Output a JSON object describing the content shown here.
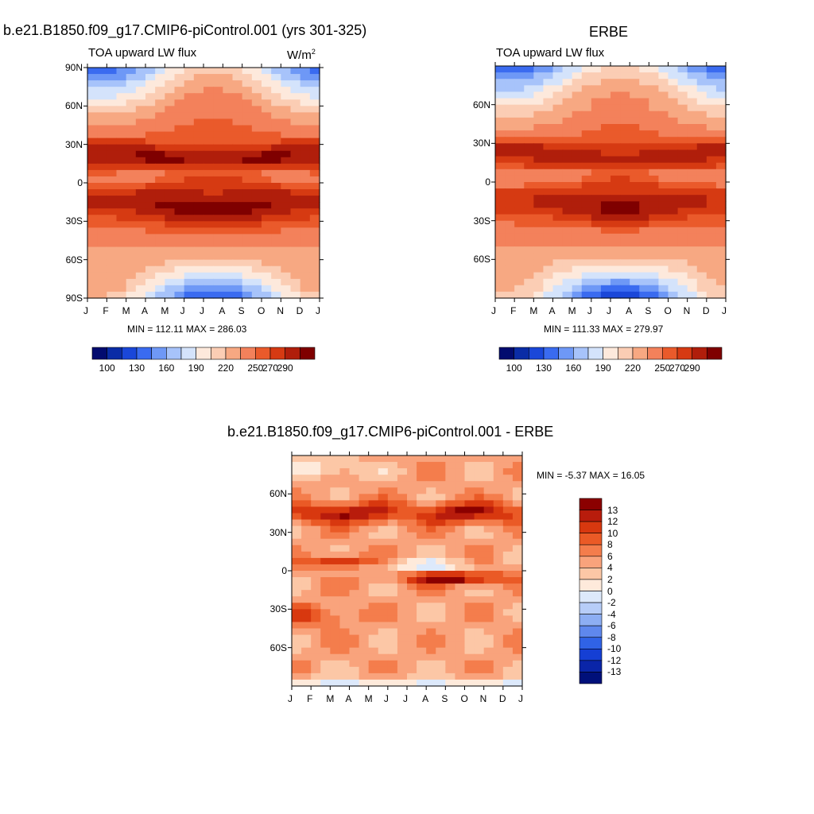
{
  "chart_data": [
    {
      "type": "heatmap",
      "title": "b.e21.B1850.f09_g17.CMIP6-piControl.001 (yrs 301-325)",
      "subtitle": "TOA upward LW flux",
      "units_base": "W/m",
      "units_exp": "2",
      "x_ticks": [
        "J",
        "F",
        "M",
        "A",
        "M",
        "J",
        "J",
        "A",
        "S",
        "O",
        "N",
        "D",
        "J"
      ],
      "y_ticks": [
        "90N",
        "60N",
        "30N",
        "0",
        "30S",
        "60S",
        "90S"
      ],
      "y_values": [
        90,
        60,
        30,
        0,
        -30,
        -60,
        -90
      ],
      "stats": "MIN = 112.11 MAX = 286.03",
      "min": 112.11,
      "max": 286.03,
      "colorbar_labels": [
        "100",
        "130",
        "160",
        "190",
        "220",
        "250",
        "270",
        "290"
      ],
      "colorbar_colors": [
        "#020b6f",
        "#0a2ca6",
        "#1a47d9",
        "#3a6bf0",
        "#6e98f6",
        "#a7c3fa",
        "#d4e3fb",
        "#fde9dc",
        "#fbcdb4",
        "#f7a882",
        "#f3815b",
        "#ea5a2b",
        "#d63a12",
        "#b01e0b",
        "#7f0000"
      ],
      "x_range": [
        0,
        12
      ],
      "y_range": [
        -90,
        90
      ]
    },
    {
      "type": "heatmap",
      "title": "ERBE",
      "subtitle": "TOA upward LW flux",
      "x_ticks": [
        "J",
        "F",
        "M",
        "A",
        "M",
        "J",
        "J",
        "A",
        "S",
        "O",
        "N",
        "D",
        "J"
      ],
      "y_ticks": [
        "60N",
        "30N",
        "0",
        "30S",
        "60S"
      ],
      "y_values": [
        60,
        30,
        0,
        -30,
        -60
      ],
      "stats": "MIN = 111.33 MAX = 279.97",
      "min": 111.33,
      "max": 279.97,
      "colorbar_labels": [
        "100",
        "130",
        "160",
        "190",
        "220",
        "250",
        "270",
        "290"
      ],
      "colorbar_colors": [
        "#020b6f",
        "#0a2ca6",
        "#1a47d9",
        "#3a6bf0",
        "#6e98f6",
        "#a7c3fa",
        "#d4e3fb",
        "#fde9dc",
        "#fbcdb4",
        "#f7a882",
        "#f3815b",
        "#ea5a2b",
        "#d63a12",
        "#b01e0b",
        "#7f0000"
      ],
      "x_range": [
        0,
        12
      ],
      "y_range": [
        -90,
        90
      ]
    },
    {
      "type": "heatmap",
      "title": "b.e21.B1850.f09_g17.CMIP6-piControl.001 - ERBE",
      "x_ticks": [
        "J",
        "F",
        "M",
        "A",
        "M",
        "J",
        "J",
        "A",
        "S",
        "O",
        "N",
        "D",
        "J"
      ],
      "y_ticks": [
        "60N",
        "30N",
        "0",
        "30S",
        "60S"
      ],
      "y_values": [
        60,
        30,
        0,
        -30,
        -60
      ],
      "stats": "MIN =  -5.37 MAX =  16.05",
      "min": -5.37,
      "max": 16.05,
      "colorbar_labels": [
        "13",
        "12",
        "10",
        "8",
        "6",
        "4",
        "2",
        "0",
        "-2",
        "-4",
        "-6",
        "-8",
        "-10",
        "-12",
        "-13"
      ],
      "colorbar_colors": [
        "#8b0000",
        "#b81c0c",
        "#d8380f",
        "#ea5a26",
        "#f47d4c",
        "#f9a37c",
        "#fcc7a6",
        "#feeadb",
        "#dde9fb",
        "#b7cdf8",
        "#8daef3",
        "#5f88ed",
        "#3063e6",
        "#153fd4",
        "#0a25a8",
        "#00107a"
      ],
      "x_range": [
        0,
        12
      ],
      "y_range": [
        -90,
        90
      ]
    }
  ]
}
